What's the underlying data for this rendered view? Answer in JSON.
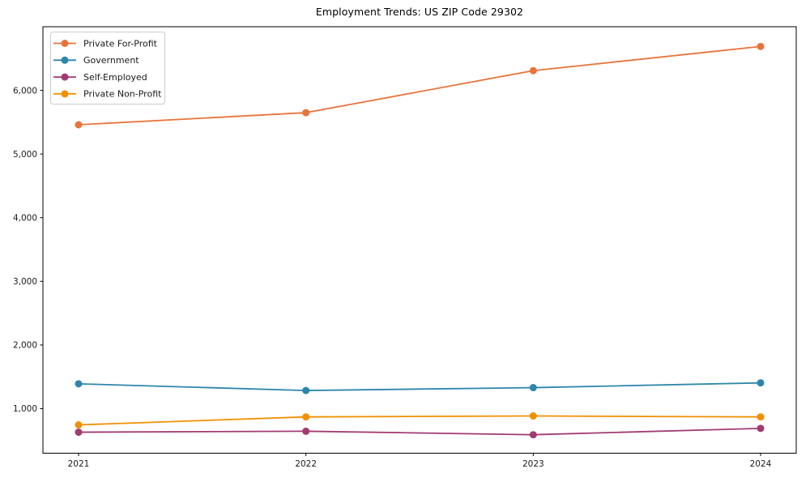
{
  "chart_data": {
    "type": "line",
    "title": "Employment Trends: US ZIP Code 29302",
    "x_labels": [
      "2021",
      "2022",
      "2023",
      "2024"
    ],
    "series": [
      {
        "name": "Private For-Profit",
        "color": "#E8743B",
        "values": [
          5460,
          5650,
          6310,
          6690
        ]
      },
      {
        "name": "Government",
        "color": "#2E86AB",
        "values": [
          1390,
          1285,
          1330,
          1405
        ]
      },
      {
        "name": "Self-Employed",
        "color": "#A23B72",
        "values": [
          630,
          645,
          590,
          690
        ]
      },
      {
        "name": "Private Non-Profit",
        "color": "#F18F01",
        "values": [
          745,
          870,
          885,
          870
        ]
      }
    ],
    "ylim": [
      300,
      7000
    ],
    "yticks": [
      1000,
      2000,
      3000,
      4000,
      5000,
      6000
    ],
    "ytick_labels": [
      "1,000",
      "2,000",
      "3,000",
      "4,000",
      "5,000",
      "6,000"
    ],
    "xlabel": "",
    "ylabel": "",
    "legend_position": "upper left",
    "grid": false,
    "axis_color": "#000000",
    "text_color": "#1a1a1a",
    "legend_border_color": "#cccccc",
    "background_color": "#ffffff"
  }
}
